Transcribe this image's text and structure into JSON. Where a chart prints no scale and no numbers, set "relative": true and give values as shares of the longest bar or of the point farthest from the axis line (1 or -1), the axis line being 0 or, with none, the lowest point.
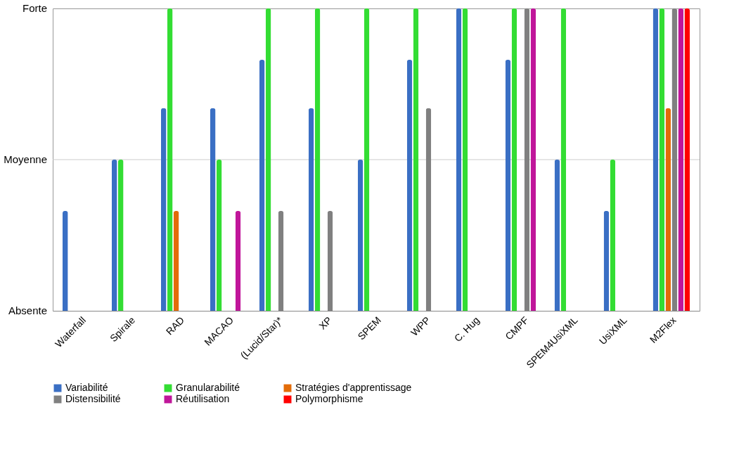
{
  "chart_data": {
    "type": "bar",
    "relative": true,
    "categories": [
      "Waterfall",
      "Spirale",
      "RAD",
      "MACAO",
      "(Lucid/Star)*",
      "XP",
      "SPEM",
      "WPP",
      "C. Hug",
      "CMPF",
      "SPEM4UsiXML",
      "UsiXML",
      "M2Flex"
    ],
    "series": [
      {
        "name": "Variabilité",
        "color": "#3a6fc4",
        "values": [
          0.33,
          0.5,
          0.67,
          0.67,
          0.83,
          0.67,
          0.5,
          0.83,
          1,
          0.83,
          0.5,
          0.33,
          1
        ]
      },
      {
        "name": "Granularabilité",
        "color": "#33dd33",
        "values": [
          0,
          0.5,
          1,
          0.5,
          1,
          1,
          1,
          1,
          1,
          1,
          1,
          0.5,
          1
        ]
      },
      {
        "name": "Stratégies d'apprentissage",
        "color": "#e36c09",
        "values": [
          0,
          0,
          0.33,
          0,
          0,
          0,
          0,
          0,
          0,
          0,
          0,
          0,
          0.67
        ]
      },
      {
        "name": "Distensibilité",
        "color": "#808080",
        "values": [
          0,
          0,
          0,
          0,
          0.33,
          0.33,
          0,
          0.67,
          0,
          1,
          0,
          0,
          1
        ]
      },
      {
        "name": "Réutilisation",
        "color": "#c0169a",
        "values": [
          0,
          0,
          0,
          0.33,
          0,
          0,
          0,
          0,
          0,
          1,
          0,
          0,
          1
        ]
      },
      {
        "name": "Polymorphisme",
        "color": "#ff0000",
        "values": [
          0,
          0,
          0,
          0,
          0,
          0,
          0,
          0,
          0,
          0,
          0,
          0,
          1
        ]
      }
    ],
    "annotations": [
      "Absente",
      "Moyenne",
      "Forte"
    ],
    "ref_lines": [
      {
        "axis": "y",
        "value": 0.5,
        "color": "#cccccc"
      }
    ],
    "legend": "bottom"
  }
}
